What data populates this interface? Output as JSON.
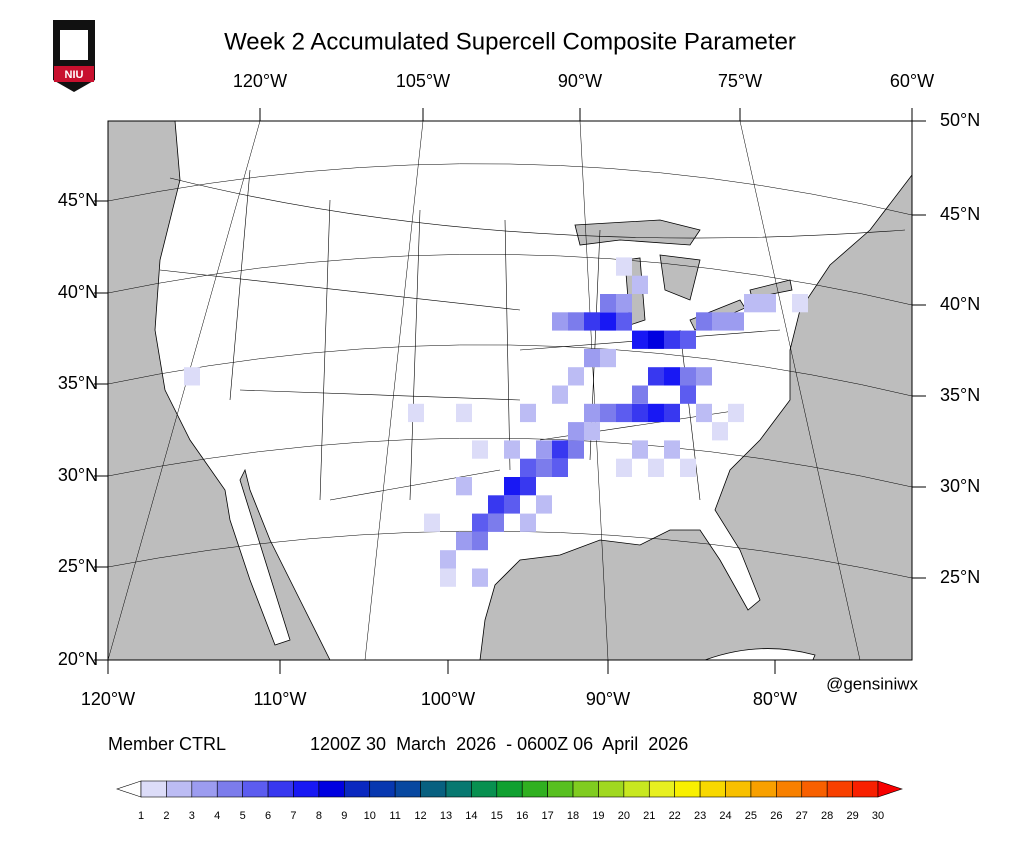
{
  "logo_text": "NIU",
  "title": "Week 2 Accumulated Supercell Composite Parameter",
  "axes": {
    "top": [
      "120°W",
      "105°W",
      "90°W",
      "75°W",
      "60°W"
    ],
    "right": [
      "50°N",
      "45°N",
      "40°N",
      "35°N",
      "30°N",
      "25°N"
    ],
    "left": [
      "45°N",
      "40°N",
      "35°N",
      "30°N",
      "25°N",
      "20°N"
    ],
    "bottom": [
      "120°W",
      "110°W",
      "100°W",
      "90°W",
      "80°W"
    ]
  },
  "credit": "@gensiniwx",
  "member": "Member CTRL",
  "period": "1200Z 30  March  2026  - 0600Z 06  April  2026",
  "colorbar": {
    "levels": [
      1,
      2,
      3,
      4,
      5,
      6,
      7,
      8,
      9,
      10,
      11,
      12,
      13,
      14,
      15,
      16,
      17,
      18,
      19,
      20,
      21,
      22,
      23,
      24,
      25,
      26,
      27,
      28,
      29,
      30
    ],
    "colors": [
      "#ffffff",
      "#dcdcf8",
      "#bcbcf4",
      "#9c9cf0",
      "#7c7cec",
      "#5c5cf0",
      "#3838f0",
      "#1818f4",
      "#0000e0",
      "#0a28c0",
      "#0838b0",
      "#0848a0",
      "#086080",
      "#087870",
      "#089050",
      "#10a030",
      "#30b020",
      "#58c020",
      "#80cc20",
      "#a0d820",
      "#c8e820",
      "#e8f020",
      "#f8f000",
      "#f8d800",
      "#f8c000",
      "#f8a000",
      "#f88000",
      "#f86000",
      "#f84000",
      "#f82000",
      "#f80000"
    ]
  },
  "cells": [
    [
      -100,
      25,
      2
    ],
    [
      -99,
      26,
      3
    ],
    [
      -98,
      26,
      4
    ],
    [
      -98,
      27,
      5
    ],
    [
      -97,
      27,
      4
    ],
    [
      -97,
      28,
      6
    ],
    [
      -96,
      28,
      5
    ],
    [
      -96,
      29,
      7
    ],
    [
      -95,
      29,
      6
    ],
    [
      -95,
      30,
      5
    ],
    [
      -94,
      30,
      4
    ],
    [
      -93,
      30,
      5
    ],
    [
      -93,
      31,
      6
    ],
    [
      -92,
      31,
      4
    ],
    [
      -94,
      31,
      3
    ],
    [
      -92,
      32,
      3
    ],
    [
      -91,
      32,
      2
    ],
    [
      -91,
      33,
      3
    ],
    [
      -90,
      33,
      4
    ],
    [
      -89,
      33,
      5
    ],
    [
      -88,
      33,
      6
    ],
    [
      -87,
      33,
      7
    ],
    [
      -86,
      33,
      6
    ],
    [
      -85,
      34,
      5
    ],
    [
      -88,
      34,
      4
    ],
    [
      -87,
      35,
      6
    ],
    [
      -86,
      35,
      7
    ],
    [
      -85,
      35,
      4
    ],
    [
      -84,
      35,
      3
    ],
    [
      -88,
      37,
      7
    ],
    [
      -87,
      37,
      8
    ],
    [
      -86,
      37,
      6
    ],
    [
      -85,
      37,
      5
    ],
    [
      -84,
      38,
      4
    ],
    [
      -83,
      38,
      3
    ],
    [
      -82,
      38,
      3
    ],
    [
      -81,
      39,
      2
    ],
    [
      -80,
      39,
      2
    ],
    [
      -91,
      38,
      6
    ],
    [
      -90,
      38,
      7
    ],
    [
      -89,
      38,
      5
    ],
    [
      -92,
      38,
      4
    ],
    [
      -93,
      38,
      3
    ],
    [
      -90,
      39,
      4
    ],
    [
      -89,
      39,
      3
    ],
    [
      -91,
      36,
      3
    ],
    [
      -90,
      36,
      2
    ],
    [
      -92,
      35,
      2
    ],
    [
      -93,
      34,
      2
    ],
    [
      -95,
      33,
      2
    ],
    [
      -96,
      31,
      2
    ],
    [
      -99,
      29,
      2
    ],
    [
      -101,
      27,
      1
    ],
    [
      -100,
      24,
      1
    ],
    [
      -98,
      24,
      2
    ],
    [
      -84,
      33,
      2
    ],
    [
      -83,
      32,
      1
    ],
    [
      -82,
      33,
      1
    ],
    [
      -86,
      31,
      2
    ],
    [
      -88,
      31,
      2
    ],
    [
      -89,
      30,
      1
    ],
    [
      -87,
      30,
      1
    ],
    [
      -85,
      30,
      1
    ],
    [
      -94,
      28,
      2
    ],
    [
      -95,
      27,
      2
    ],
    [
      -98,
      31,
      1
    ],
    [
      -99,
      33,
      1
    ],
    [
      -102,
      33,
      1
    ],
    [
      -116,
      35,
      1
    ],
    [
      -88,
      40,
      2
    ],
    [
      -89,
      41,
      1
    ],
    [
      -78,
      39,
      1
    ]
  ]
}
